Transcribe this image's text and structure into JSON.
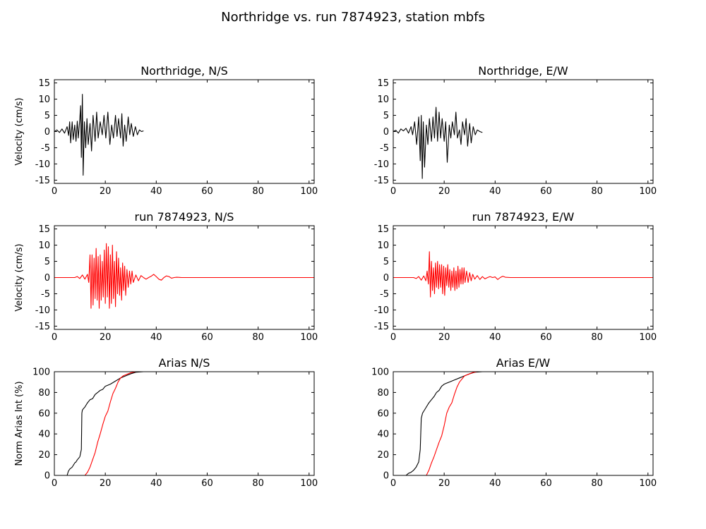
{
  "figure": {
    "suptitle": "Northridge vs. run 7874923, station mbfs"
  },
  "colors": {
    "recorded": "#000000",
    "simulated": "#ff0000"
  },
  "chart_data": [
    {
      "type": "line",
      "title": "Northridge, N/S",
      "ylabel": "Velocity (cm/s)",
      "xlim": [
        0,
        102
      ],
      "ylim": [
        -16,
        16
      ],
      "xticks": [
        0,
        20,
        40,
        60,
        80,
        100
      ],
      "yticks": [
        -15,
        -10,
        -5,
        0,
        5,
        10,
        15
      ],
      "series": [
        {
          "color": "#000000",
          "x": [
            0,
            1,
            2,
            3,
            4,
            5,
            5.6,
            6,
            6.4,
            7,
            7.4,
            8,
            8.5,
            9,
            9.4,
            10,
            10.3,
            10.6,
            11,
            11.3,
            11.8,
            12.3,
            12.8,
            13.3,
            14,
            14.6,
            15.2,
            16,
            16.6,
            17.2,
            18,
            18.8,
            19.5,
            20.2,
            21,
            21.8,
            22.5,
            23.2,
            24,
            24.6,
            25.2,
            26,
            26.5,
            27,
            27.6,
            28.2,
            29,
            29.6,
            30.2,
            31,
            31.8,
            32.6,
            33.4,
            34.2,
            35
          ],
          "y": [
            0,
            0.5,
            -0.3,
            0.8,
            -0.5,
            1.5,
            -1.2,
            3,
            -3.5,
            3,
            -2.5,
            2,
            -3,
            3.2,
            -2,
            4,
            8,
            -8,
            11.5,
            -13.5,
            3,
            -5,
            4,
            -4,
            2.5,
            -6,
            5,
            -3,
            6,
            -2,
            3,
            -1,
            5,
            -2,
            6,
            -4,
            2,
            -2,
            5,
            -1.5,
            4,
            -2,
            5.5,
            -4.5,
            2,
            -3,
            4.5,
            -1,
            2.5,
            -1.5,
            1.5,
            -1,
            0.5,
            0,
            0.2
          ]
        }
      ]
    },
    {
      "type": "line",
      "title": "Northridge, E/W",
      "ylabel": "",
      "xlim": [
        0,
        102
      ],
      "ylim": [
        -16,
        16
      ],
      "xticks": [
        0,
        20,
        40,
        60,
        80,
        100
      ],
      "yticks": [
        -15,
        -10,
        -5,
        0,
        5,
        10,
        15
      ],
      "series": [
        {
          "color": "#000000",
          "x": [
            0,
            1,
            2,
            3,
            4,
            5,
            6,
            7,
            7.6,
            8.4,
            9.2,
            10,
            10.6,
            11,
            11.4,
            11.8,
            12.3,
            13,
            13.6,
            14.2,
            15,
            15.6,
            16.2,
            16.8,
            17.4,
            18,
            18.6,
            19.2,
            20,
            20.6,
            21.2,
            22,
            22.6,
            23.2,
            24,
            24.6,
            25.2,
            26,
            26.6,
            27.2,
            28,
            28.6,
            29.2,
            30,
            30.6,
            31.4,
            32.2,
            33,
            34,
            35
          ],
          "y": [
            0,
            0.4,
            -0.5,
            0.8,
            0.2,
            1,
            -0.5,
            1.5,
            -1,
            3,
            -4,
            4.5,
            -9,
            5,
            -14.5,
            3,
            -11,
            2,
            -4,
            4,
            -3,
            4.5,
            -2,
            7.5,
            -3,
            6,
            -2,
            4,
            -3,
            3,
            -9.5,
            2,
            -2,
            3,
            -1,
            6,
            -2,
            0.5,
            -4,
            3,
            -1,
            4,
            -4.5,
            2.5,
            -3.5,
            1.5,
            -1,
            0.5,
            0,
            -0.3
          ]
        }
      ]
    },
    {
      "type": "line",
      "title": "run 7874923, N/S",
      "ylabel": "Velocity (cm/s)",
      "xlim": [
        0,
        102
      ],
      "ylim": [
        -16,
        16
      ],
      "xticks": [
        0,
        20,
        40,
        60,
        80,
        100
      ],
      "yticks": [
        -15,
        -10,
        -5,
        0,
        5,
        10,
        15
      ],
      "series": [
        {
          "color": "#ff0000",
          "x": [
            0,
            5,
            8,
            9,
            10,
            11,
            12,
            13,
            13.5,
            14,
            14.4,
            14.8,
            15.2,
            15.6,
            16,
            16.4,
            16.8,
            17.2,
            17.6,
            18,
            18.4,
            18.8,
            19.2,
            19.6,
            20,
            20.4,
            20.8,
            21.2,
            21.6,
            22,
            22.4,
            22.8,
            23.2,
            23.6,
            24,
            24.4,
            24.8,
            25.2,
            25.6,
            26,
            26.4,
            26.8,
            27.2,
            27.6,
            28,
            28.5,
            29,
            29.5,
            30,
            30.5,
            31,
            32,
            33,
            34,
            35,
            36,
            37,
            38,
            39,
            40,
            41,
            42,
            43,
            44,
            45,
            46,
            47,
            48,
            50,
            60,
            80,
            102
          ],
          "y": [
            0,
            0,
            0,
            0.3,
            -0.3,
            0.8,
            -0.5,
            1,
            -1.5,
            7,
            -9.5,
            7,
            -8.5,
            6,
            -6.5,
            9,
            -7,
            6.5,
            -9.5,
            7,
            -7,
            5,
            -6,
            8.5,
            -8,
            10.5,
            -6,
            9.5,
            -9.5,
            7,
            -8,
            10,
            -6.5,
            5,
            -9,
            8,
            -5,
            6,
            -5.5,
            3,
            -7,
            4.5,
            -4,
            3.5,
            -5.5,
            2.5,
            -3,
            2,
            -2,
            2,
            -1.5,
            0.8,
            -1,
            0.6,
            0,
            -0.5,
            0,
            0.4,
            1,
            0.3,
            -0.5,
            -0.8,
            0,
            0.5,
            0.3,
            -0.2,
            0,
            0.1,
            0,
            0,
            0,
            0
          ]
        }
      ]
    },
    {
      "type": "line",
      "title": "run 7874923, E/W",
      "ylabel": "",
      "xlim": [
        0,
        102
      ],
      "ylim": [
        -16,
        16
      ],
      "xticks": [
        0,
        20,
        40,
        60,
        80,
        100
      ],
      "yticks": [
        -15,
        -10,
        -5,
        0,
        5,
        10,
        15
      ],
      "series": [
        {
          "color": "#ff0000",
          "x": [
            0,
            5,
            8,
            9,
            10,
            11,
            12,
            12.8,
            13.3,
            13.8,
            14.2,
            14.6,
            15,
            15.4,
            15.8,
            16.2,
            16.6,
            17,
            17.4,
            17.8,
            18.2,
            18.6,
            19,
            19.4,
            19.8,
            20.2,
            20.6,
            21,
            21.4,
            21.8,
            22.2,
            22.6,
            23,
            23.4,
            23.8,
            24.2,
            24.6,
            25,
            25.4,
            25.8,
            26.2,
            26.6,
            27,
            27.4,
            27.8,
            28.2,
            28.8,
            29.4,
            30,
            30.6,
            31.2,
            32,
            33,
            34,
            35,
            36,
            37,
            38,
            39,
            40,
            41,
            42,
            43,
            44,
            46,
            50,
            60,
            80,
            102
          ],
          "y": [
            0,
            0,
            0,
            -0.3,
            0.3,
            -0.8,
            0.5,
            -1,
            2,
            -2,
            8,
            -6,
            5,
            -4,
            3,
            -5,
            4.5,
            -3,
            5,
            -3.5,
            4,
            -3,
            4,
            -5,
            3.5,
            -5.5,
            3,
            -2.5,
            4,
            -3,
            2.5,
            -4,
            2,
            -3,
            3,
            -4,
            2,
            -3.5,
            3.5,
            -3,
            2.5,
            -2,
            3,
            -2,
            3,
            -1.5,
            2,
            -1.5,
            1.5,
            -1,
            1,
            -0.5,
            0.6,
            -0.6,
            0.3,
            -0.4,
            0,
            0.3,
            0,
            0.2,
            -0.6,
            0,
            0.4,
            0.1,
            0,
            0,
            0,
            0,
            0
          ]
        }
      ]
    },
    {
      "type": "line",
      "title": "Arias N/S",
      "ylabel": "Norm Arias Int (%)",
      "xlim": [
        0,
        102
      ],
      "ylim": [
        0,
        100
      ],
      "xticks": [
        0,
        20,
        40,
        60,
        80,
        100
      ],
      "yticks": [
        0,
        20,
        40,
        60,
        80,
        100
      ],
      "series": [
        {
          "color": "#000000",
          "x": [
            0,
            5,
            5.5,
            6,
            7,
            8,
            8.5,
            9,
            10,
            10.6,
            10.8,
            11,
            11.3,
            12,
            13,
            14,
            15,
            16,
            17,
            18,
            19,
            20,
            21,
            22,
            24,
            26,
            28,
            30,
            32,
            35
          ],
          "y": [
            0,
            0,
            4,
            6,
            8,
            12,
            13,
            15,
            18,
            25,
            60,
            63,
            64,
            66,
            70,
            73,
            74,
            78,
            80,
            82,
            83,
            86,
            87,
            88,
            91,
            94,
            96,
            98,
            99.5,
            100
          ]
        },
        {
          "color": "#ff0000",
          "x": [
            0,
            12,
            13,
            14,
            15,
            16,
            17,
            18,
            19,
            20,
            21,
            22,
            23,
            24,
            25,
            26,
            27,
            28,
            29,
            30,
            31,
            32,
            34
          ],
          "y": [
            0,
            0,
            3,
            8,
            15,
            22,
            32,
            40,
            49,
            57,
            62,
            71,
            79,
            84,
            90,
            94,
            96,
            97,
            98,
            99,
            99.5,
            100,
            100
          ]
        }
      ]
    },
    {
      "type": "line",
      "title": "Arias E/W",
      "ylabel": "",
      "xlim": [
        0,
        102
      ],
      "ylim": [
        0,
        100
      ],
      "xticks": [
        0,
        20,
        40,
        60,
        80,
        100
      ],
      "yticks": [
        0,
        20,
        40,
        60,
        80,
        100
      ],
      "series": [
        {
          "color": "#000000",
          "x": [
            0,
            5,
            6,
            7,
            8,
            9,
            10,
            10.6,
            11,
            11.5,
            12,
            13,
            14,
            15,
            16,
            17,
            18,
            19,
            20,
            21,
            22,
            24,
            26,
            28,
            30,
            32,
            35
          ],
          "y": [
            0,
            0,
            2,
            3,
            5,
            8,
            13,
            25,
            55,
            60,
            62,
            66,
            70,
            73,
            76,
            80,
            82,
            86,
            88,
            89,
            90,
            92,
            94,
            96,
            98,
            99.5,
            100
          ]
        },
        {
          "color": "#ff0000",
          "x": [
            0,
            13,
            14,
            15,
            16,
            17,
            18,
            19,
            20,
            21,
            22,
            23,
            24,
            25,
            26,
            27,
            28,
            29,
            30,
            31,
            32,
            33,
            35
          ],
          "y": [
            0,
            0,
            5,
            12,
            18,
            25,
            32,
            38,
            48,
            60,
            66,
            70,
            78,
            85,
            90,
            93,
            96,
            97,
            98,
            99,
            99.5,
            100,
            100
          ]
        }
      ]
    }
  ]
}
